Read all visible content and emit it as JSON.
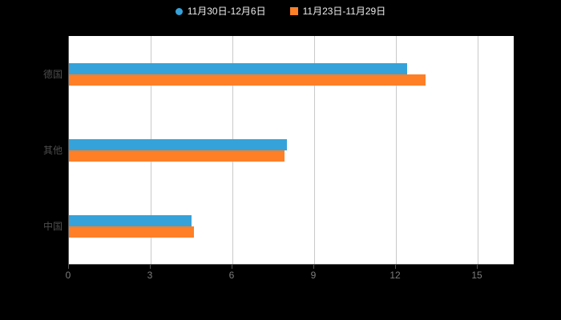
{
  "legend": {
    "items": [
      {
        "label": "11月30日-12月6日",
        "marker": "circle"
      },
      {
        "label": "11月23日-11月29日",
        "marker": "square"
      }
    ]
  },
  "chart_data": {
    "type": "bar",
    "orientation": "horizontal",
    "title": "",
    "xlabel": "",
    "ylabel": "",
    "categories": [
      "德国",
      "其他",
      "中国"
    ],
    "series": [
      {
        "name": "11月30日-12月6日",
        "color": "#36A2DA",
        "values": [
          12.4,
          8.0,
          4.5
        ]
      },
      {
        "name": "11月23日-11月29日",
        "color": "#FF7F27",
        "values": [
          13.1,
          7.9,
          4.6
        ]
      }
    ],
    "xlim": [
      0,
      15
    ],
    "xticks": [
      0,
      3,
      6,
      9,
      12,
      15
    ],
    "grid": true,
    "legend_position": "top",
    "background_color": "#000000",
    "plot_background_color": "#ffffff"
  }
}
